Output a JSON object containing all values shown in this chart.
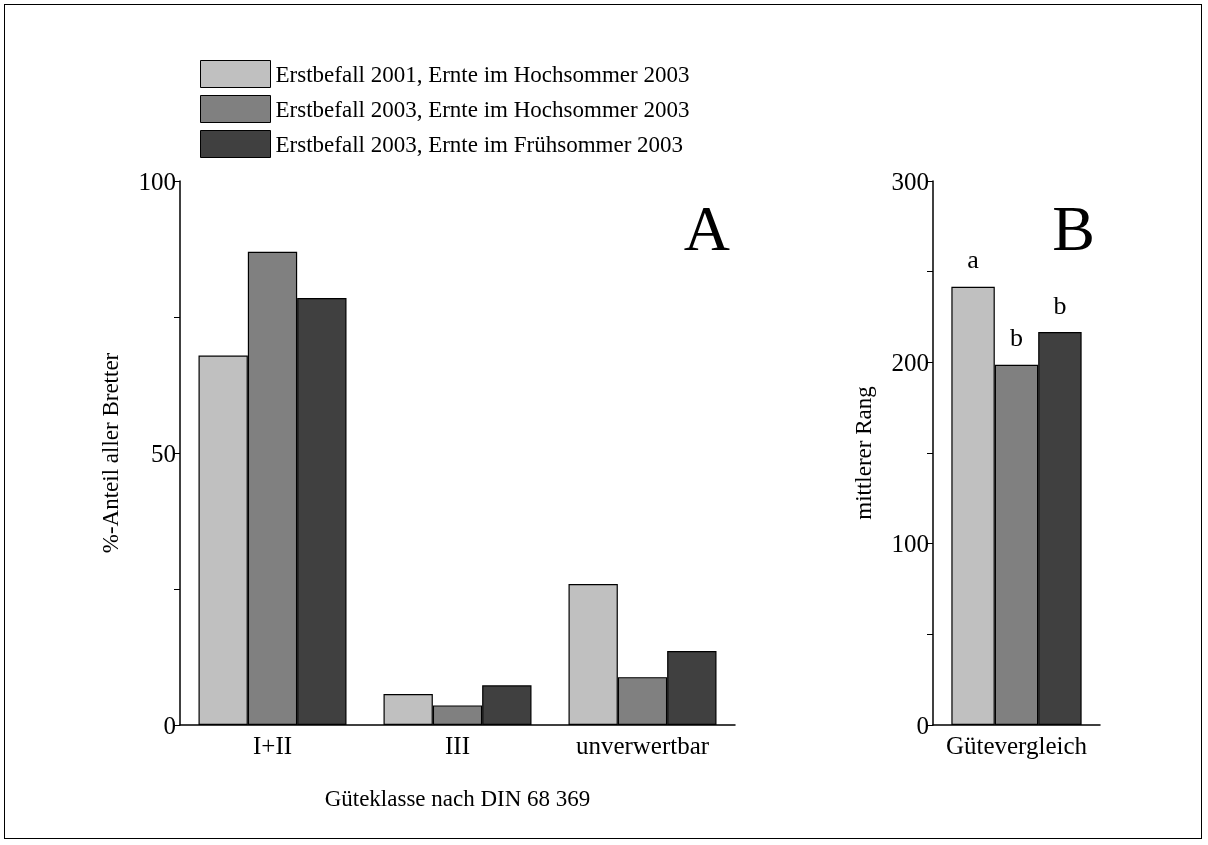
{
  "chart_data": [
    {
      "type": "bar",
      "ylabel": "%-Anteil aller Bretter",
      "xlabel": "Güteklasse nach DIN 68 369",
      "categories": [
        "I+II",
        "III",
        "unverwertbar"
      ],
      "series": [
        {
          "name": "Erstbefall 2001, Ernte im Hochsommer 2003",
          "color": "#c0c0c0",
          "values": [
            67.9,
            5.7,
            25.9
          ]
        },
        {
          "name": "Erstbefall 2003, Ernte im Hochsommer 2003",
          "color": "#808080",
          "values": [
            87.0,
            3.6,
            8.8
          ]
        },
        {
          "name": "Erstbefall 2003, Ernte im Frühsommer 2003",
          "color": "#404040",
          "values": [
            78.5,
            7.3,
            13.6
          ]
        }
      ],
      "ylim": [
        0,
        100
      ],
      "yticks": [
        0,
        {
          "value": 25,
          "label": null
        },
        50,
        {
          "value": 75,
          "label": null
        },
        100
      ],
      "grid": false,
      "legend": "top left",
      "annotations": [
        "A"
      ]
    },
    {
      "type": "bar",
      "ylabel": "mittlerer Rang",
      "categories": [
        "Gütevergleich"
      ],
      "series": [
        {
          "color": "#c0c0c0",
          "values": [
            241.7
          ],
          "value_labels": [
            "a"
          ]
        },
        {
          "color": "#808080",
          "values": [
            198.6
          ],
          "value_labels": [
            "b"
          ]
        },
        {
          "color": "#404040",
          "values": [
            216.7
          ],
          "value_labels": [
            "b"
          ]
        }
      ],
      "ylim": [
        0,
        300
      ],
      "yticks": [
        0,
        {
          "value": 50,
          "label": null
        },
        100,
        {
          "value": 150,
          "label": null
        },
        200,
        {
          "value": 250,
          "label": null
        },
        300
      ],
      "grid": false,
      "legend": false,
      "annotations": [
        "B"
      ]
    }
  ]
}
